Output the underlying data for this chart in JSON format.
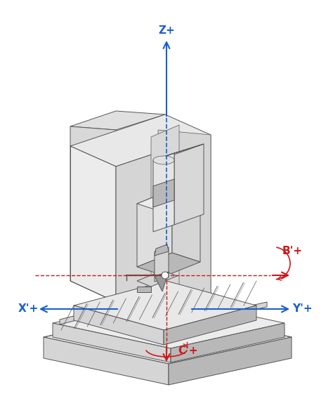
{
  "bg": "#ffffff",
  "blue": "#1a5fcc",
  "red": "#cc1a1a",
  "c_face_light": "#ececec",
  "c_face_mid": "#d5d5d5",
  "c_face_dark": "#b8b8b8",
  "c_face_darker": "#999999",
  "outline": "#555555",
  "outline_thin": "#777777",
  "figw": 4.74,
  "figh": 5.61,
  "dpi": 100,
  "lbl_Z": "Z+",
  "lbl_X": "X'+",
  "lbl_Y": "Y'+",
  "lbl_B": "B'+",
  "lbl_C": "C'+"
}
